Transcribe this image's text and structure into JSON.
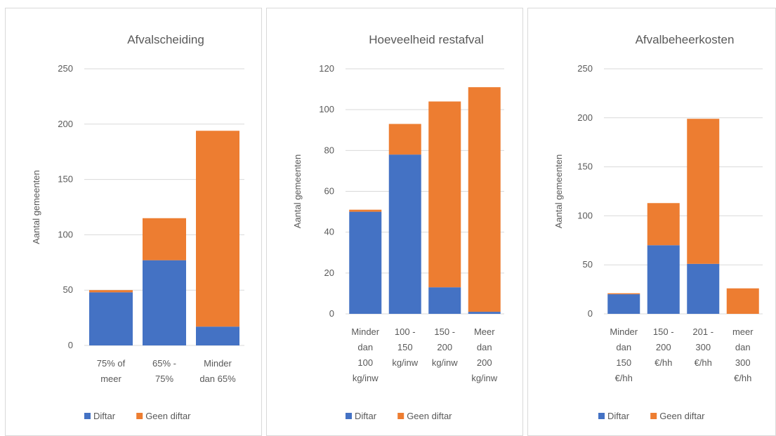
{
  "colors": {
    "diftar": "#4472c4",
    "geen_diftar": "#ed7d31"
  },
  "chart_data": [
    {
      "type": "bar",
      "stacked": true,
      "title": "Afvalscheiding",
      "ylabel": "Aantal gemeenten",
      "xlabel": "",
      "ylim": [
        0,
        250
      ],
      "yticks": [
        0,
        50,
        100,
        150,
        200,
        250
      ],
      "categories": [
        [
          "75% of",
          "meer"
        ],
        [
          "65% -",
          "75%"
        ],
        [
          "Minder",
          "dan 65%"
        ]
      ],
      "series": [
        {
          "name": "Diftar",
          "values": [
            48,
            77,
            17
          ]
        },
        {
          "name": "Geen diftar",
          "values": [
            2,
            38,
            177
          ]
        }
      ],
      "legend": "bottom",
      "grid": true
    },
    {
      "type": "bar",
      "stacked": true,
      "title": "Hoeveelheid restafval",
      "ylabel": "Aantal gemeenten",
      "xlabel": "",
      "ylim": [
        0,
        120
      ],
      "yticks": [
        0,
        20,
        40,
        60,
        80,
        100,
        120
      ],
      "categories": [
        [
          "Minder",
          "dan",
          "100",
          "kg/inw"
        ],
        [
          "100 -",
          "150",
          "kg/inw"
        ],
        [
          "150 -",
          "200",
          "kg/inw"
        ],
        [
          "Meer",
          "dan",
          "200",
          "kg/inw"
        ]
      ],
      "series": [
        {
          "name": "Diftar",
          "values": [
            50,
            78,
            13,
            1
          ]
        },
        {
          "name": "Geen diftar",
          "values": [
            1,
            15,
            91,
            110
          ]
        }
      ],
      "legend": "bottom",
      "grid": true
    },
    {
      "type": "bar",
      "stacked": true,
      "title": "Afvalbeheerkosten",
      "ylabel": "Aantal gemeenten",
      "xlabel": "",
      "ylim": [
        0,
        250
      ],
      "yticks": [
        0,
        50,
        100,
        150,
        200,
        250
      ],
      "categories": [
        [
          "Minder",
          "dan",
          "150",
          "€/hh"
        ],
        [
          "150 -",
          "200",
          "€/hh"
        ],
        [
          "201 -",
          "300",
          "€/hh"
        ],
        [
          "meer",
          "dan",
          "300",
          "€/hh"
        ]
      ],
      "series": [
        {
          "name": "Diftar",
          "values": [
            20,
            70,
            51,
            0
          ]
        },
        {
          "name": "Geen diftar",
          "values": [
            1,
            43,
            148,
            26
          ]
        }
      ],
      "legend": "bottom",
      "grid": true
    }
  ]
}
